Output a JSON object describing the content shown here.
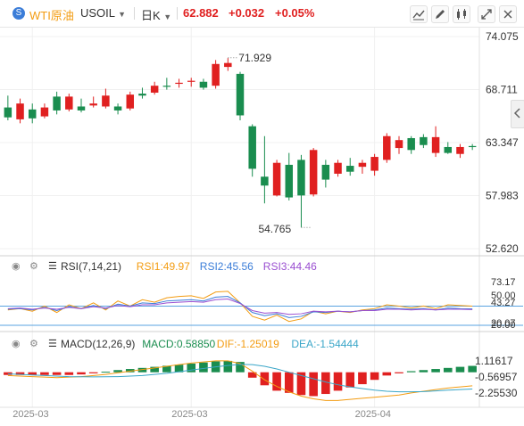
{
  "header": {
    "coin_glyph": "S",
    "name": "WTI原油",
    "symbol": "USOIL",
    "period": "日K",
    "price": "62.882",
    "change": "+0.032",
    "change_pct": "+0.05%",
    "colors": {
      "name": "#f39c12",
      "price": "#e02020",
      "muted": "#333333"
    }
  },
  "toolbar": {
    "icons": [
      "indicator-icon",
      "draw-icon",
      "chart-type-icon",
      "expand-icon",
      "close-icon"
    ]
  },
  "chart_data": [
    {
      "type": "candlestick",
      "title": "",
      "ylim": [
        52.62,
        74.075
      ],
      "y_ticks": [
        "74.075",
        "68.711",
        "63.347",
        "57.983",
        "52.620"
      ],
      "x_ticks": [
        {
          "index": 2,
          "label": "2025-03"
        },
        {
          "index": 15,
          "label": "2025-03"
        },
        {
          "index": 30,
          "label": "2025-04"
        }
      ],
      "annotations": [
        {
          "index": 18,
          "label": "71.929",
          "kind": "high"
        },
        {
          "index": 24,
          "label": "54.765",
          "kind": "low"
        }
      ],
      "up_color": "#e02020",
      "down_color": "#1a8d4f",
      "candles": [
        {
          "o": 66.9,
          "c": 65.9,
          "h": 68.1,
          "l": 65.6
        },
        {
          "o": 65.7,
          "c": 67.3,
          "h": 67.8,
          "l": 65.3
        },
        {
          "o": 66.7,
          "c": 65.8,
          "h": 67.3,
          "l": 65.3
        },
        {
          "o": 66.0,
          "c": 66.9,
          "h": 67.3,
          "l": 65.8
        },
        {
          "o": 68.0,
          "c": 66.6,
          "h": 68.5,
          "l": 66.2
        },
        {
          "o": 66.7,
          "c": 68.0,
          "h": 68.3,
          "l": 66.5
        },
        {
          "o": 67.0,
          "c": 66.6,
          "h": 67.8,
          "l": 66.4
        },
        {
          "o": 67.1,
          "c": 67.3,
          "h": 68.0,
          "l": 66.9
        },
        {
          "o": 67.0,
          "c": 68.1,
          "h": 68.8,
          "l": 66.8
        },
        {
          "o": 67.0,
          "c": 66.6,
          "h": 67.3,
          "l": 66.2
        },
        {
          "o": 66.8,
          "c": 68.2,
          "h": 68.5,
          "l": 66.6
        },
        {
          "o": 68.3,
          "c": 68.1,
          "h": 68.9,
          "l": 67.8
        },
        {
          "o": 68.4,
          "c": 69.1,
          "h": 69.5,
          "l": 68.2
        },
        {
          "o": 69.1,
          "c": 69.0,
          "h": 69.9,
          "l": 68.7
        },
        {
          "o": 69.4,
          "c": 69.4,
          "h": 69.8,
          "l": 68.9
        },
        {
          "o": 69.5,
          "c": 69.6,
          "h": 69.9,
          "l": 69.0
        },
        {
          "o": 69.5,
          "c": 68.9,
          "h": 69.8,
          "l": 68.7
        },
        {
          "o": 69.1,
          "c": 71.3,
          "h": 71.7,
          "l": 68.8
        },
        {
          "o": 71.0,
          "c": 71.4,
          "h": 71.9,
          "l": 70.6
        },
        {
          "o": 70.3,
          "c": 66.1,
          "h": 70.5,
          "l": 65.6
        },
        {
          "o": 65.0,
          "c": 60.7,
          "h": 65.2,
          "l": 59.9
        },
        {
          "o": 59.9,
          "c": 59.0,
          "h": 64.0,
          "l": 57.2
        },
        {
          "o": 58.0,
          "c": 61.3,
          "h": 61.6,
          "l": 57.9
        },
        {
          "o": 61.1,
          "c": 57.8,
          "h": 62.3,
          "l": 57.5
        },
        {
          "o": 61.6,
          "c": 58.0,
          "h": 62.1,
          "l": 54.765
        },
        {
          "o": 58.1,
          "c": 62.6,
          "h": 62.8,
          "l": 57.9
        },
        {
          "o": 61.1,
          "c": 59.6,
          "h": 61.6,
          "l": 58.8
        },
        {
          "o": 60.2,
          "c": 61.3,
          "h": 61.6,
          "l": 59.9
        },
        {
          "o": 61.0,
          "c": 60.4,
          "h": 61.8,
          "l": 60.0
        },
        {
          "o": 60.9,
          "c": 61.3,
          "h": 61.6,
          "l": 60.2
        },
        {
          "o": 60.5,
          "c": 61.9,
          "h": 62.2,
          "l": 60.0
        },
        {
          "o": 61.6,
          "c": 64.0,
          "h": 64.3,
          "l": 61.3
        },
        {
          "o": 62.8,
          "c": 63.6,
          "h": 64.0,
          "l": 62.2
        },
        {
          "o": 63.8,
          "c": 62.6,
          "h": 64.0,
          "l": 62.2
        },
        {
          "o": 63.9,
          "c": 63.1,
          "h": 64.2,
          "l": 62.8
        },
        {
          "o": 62.3,
          "c": 63.9,
          "h": 65.0,
          "l": 61.9
        },
        {
          "o": 62.9,
          "c": 62.3,
          "h": 63.4,
          "l": 62.2
        },
        {
          "o": 62.2,
          "c": 62.9,
          "h": 63.2,
          "l": 61.8
        },
        {
          "o": 63.0,
          "c": 62.9,
          "h": 63.2,
          "l": 62.6
        }
      ]
    },
    {
      "type": "line",
      "title": "RSI(7,14,21)",
      "ylim": [
        20,
        84
      ],
      "y_ticks": [
        "73.17",
        "50.00",
        "43.27",
        "20.07",
        "20.00"
      ],
      "reference_lines": [
        50,
        20
      ],
      "series": [
        {
          "name": "RSI1:49.97",
          "color": "#f39c12",
          "values": [
            44,
            46,
            42,
            50,
            40,
            52,
            46,
            55,
            44,
            58,
            50,
            60,
            56,
            63,
            65,
            66,
            62,
            72,
            73,
            55,
            34,
            28,
            36,
            26,
            30,
            42,
            38,
            42,
            40,
            44,
            46,
            52,
            50,
            47,
            50,
            46,
            52,
            51,
            49.97
          ]
        },
        {
          "name": "RSI2:45.56",
          "color": "#3b7dd8",
          "values": [
            45,
            46,
            44,
            48,
            43,
            49,
            46,
            51,
            46,
            53,
            50,
            55,
            54,
            58,
            59,
            60,
            58,
            64,
            65,
            55,
            40,
            35,
            38,
            32,
            34,
            41,
            40,
            42,
            41,
            43,
            44,
            47,
            46,
            45,
            46,
            44,
            47,
            46,
            45.56
          ]
        },
        {
          "name": "RSI3:44.46",
          "color": "#9a4fd1",
          "values": [
            46,
            47,
            45,
            47,
            45,
            48,
            46,
            49,
            47,
            51,
            49,
            52,
            52,
            55,
            56,
            57,
            56,
            60,
            61,
            54,
            43,
            39,
            40,
            37,
            38,
            42,
            41,
            42,
            41,
            43,
            43,
            45,
            45,
            44,
            45,
            44,
            45,
            45,
            44.46
          ]
        }
      ]
    },
    {
      "type": "bar",
      "title": "MACD(12,26,9)",
      "ylim": [
        -2.9,
        1.7
      ],
      "y_ticks": [
        "1.11617",
        "-0.56957",
        "-2.25530"
      ],
      "series": [
        {
          "name": "MACD:0.58850",
          "color": "#1a8d4f",
          "values": [
            -0.25,
            -0.25,
            -0.25,
            -0.25,
            -0.25,
            -0.25,
            -0.2,
            -0.1,
            0.05,
            0.2,
            0.3,
            0.4,
            0.5,
            0.6,
            0.7,
            0.8,
            0.9,
            1.0,
            1.05,
            0.95,
            -0.5,
            -1.2,
            -1.7,
            -1.9,
            -2.1,
            -2.2,
            -2.0,
            -1.7,
            -1.4,
            -1.1,
            -0.7,
            -0.3,
            -0.1,
            0.1,
            0.2,
            0.3,
            0.4,
            0.5,
            0.5885
          ]
        },
        {
          "name": "DIF:-1.25019",
          "color": "#f39c12",
          "values": [
            -0.3,
            -0.35,
            -0.4,
            -0.45,
            -0.5,
            -0.45,
            -0.4,
            -0.3,
            -0.2,
            -0.05,
            0.1,
            0.25,
            0.4,
            0.55,
            0.7,
            0.85,
            0.95,
            1.05,
            1.05,
            0.8,
            0.1,
            -0.7,
            -1.3,
            -1.8,
            -2.2,
            -2.45,
            -2.6,
            -2.6,
            -2.5,
            -2.4,
            -2.3,
            -2.2,
            -2.1,
            -1.9,
            -1.75,
            -1.6,
            -1.45,
            -1.35,
            -1.25019
          ]
        },
        {
          "name": "DEA:-1.54444",
          "color": "#3aa6c8",
          "values": [
            -0.15,
            -0.2,
            -0.25,
            -0.3,
            -0.35,
            -0.4,
            -0.42,
            -0.43,
            -0.42,
            -0.4,
            -0.35,
            -0.3,
            -0.2,
            -0.1,
            0.05,
            0.2,
            0.35,
            0.5,
            0.62,
            0.72,
            0.7,
            0.55,
            0.3,
            0.0,
            -0.3,
            -0.6,
            -0.9,
            -1.15,
            -1.35,
            -1.5,
            -1.65,
            -1.75,
            -1.8,
            -1.8,
            -1.78,
            -1.72,
            -1.65,
            -1.6,
            -1.54444
          ]
        }
      ]
    }
  ]
}
